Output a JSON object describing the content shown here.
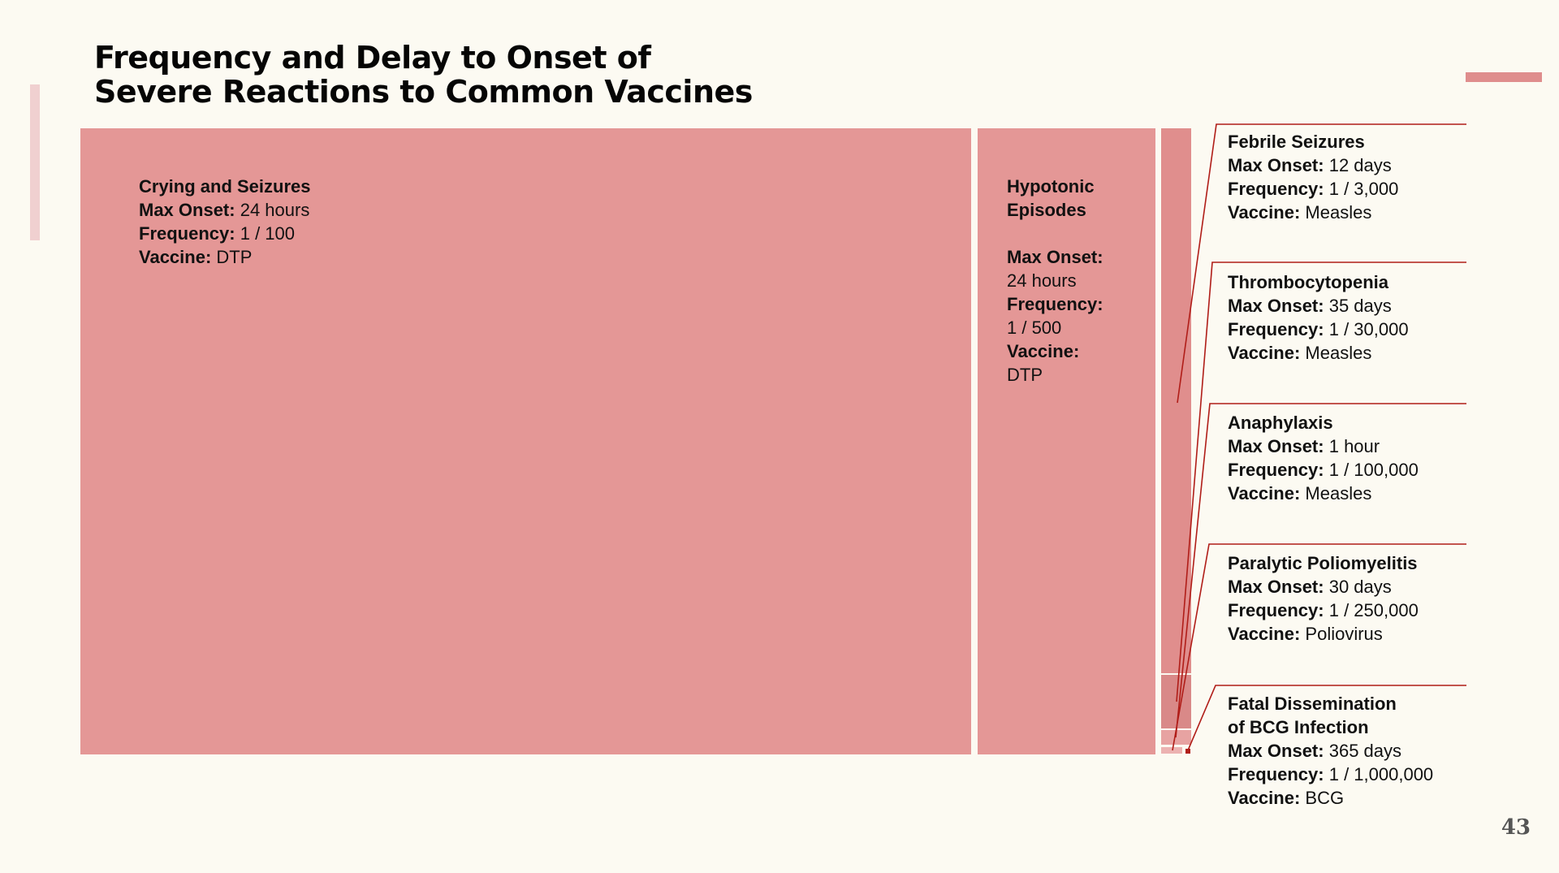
{
  "title_line1": "Frequency and Delay to Onset of",
  "title_line2": "Severe Reactions to Common Vaccines",
  "page_number": "43",
  "labels": {
    "max_onset": "Max Onset:",
    "frequency": "Frequency:",
    "vaccine": "Vaccine:"
  },
  "colors": {
    "background": "#fcfaf2",
    "tile": "#e49796",
    "tile_small": "#e08e8d",
    "tile_mid": "#d98988",
    "tile_light": "#e7a3a2",
    "tile_tiny": "#ecb2b1",
    "leader_line": "#b01d18",
    "accent": "#df8d8d"
  },
  "chart_data": {
    "type": "treemap",
    "title": "Frequency and Delay to Onset of Severe Reactions to Common Vaccines",
    "value_description": "area proportional to frequency (1 / N)",
    "items": [
      {
        "name": "Crying and Seizures",
        "max_onset": "24 hours",
        "frequency": "1 / 100",
        "vaccine": "DTP",
        "value": 0.01
      },
      {
        "name": "Hypotonic Episodes",
        "name_lines": [
          "Hypotonic",
          "Episodes"
        ],
        "max_onset": "24 hours",
        "frequency": "1 / 500",
        "vaccine": "DTP",
        "value": 0.002
      },
      {
        "name": "Febrile Seizures",
        "name_lines": [
          "Febrile Seizures"
        ],
        "max_onset": "12 days",
        "frequency": "1 / 3,000",
        "vaccine": "Measles",
        "value": 0.000333
      },
      {
        "name": "Thrombocytopenia",
        "name_lines": [
          "Thrombocytopenia"
        ],
        "max_onset": "35 days",
        "frequency": "1 / 30,000",
        "vaccine": "Measles",
        "value": 3.33e-05
      },
      {
        "name": "Anaphylaxis",
        "name_lines": [
          "Anaphylaxis"
        ],
        "max_onset": "1 hour",
        "frequency": "1 / 100,000",
        "vaccine": "Measles",
        "value": 1e-05
      },
      {
        "name": "Paralytic Poliomyelitis",
        "name_lines": [
          "Paralytic Poliomyelitis"
        ],
        "max_onset": "30 days",
        "frequency": "1 / 250,000",
        "vaccine": "Poliovirus",
        "value": 4e-06
      },
      {
        "name": "Fatal Dissemination of BCG Infection",
        "name_lines": [
          "Fatal Dissemination",
          "of BCG Infection"
        ],
        "max_onset": "365 days",
        "frequency": "1 / 1,000,000",
        "vaccine": "BCG",
        "value": 1e-06
      }
    ]
  }
}
